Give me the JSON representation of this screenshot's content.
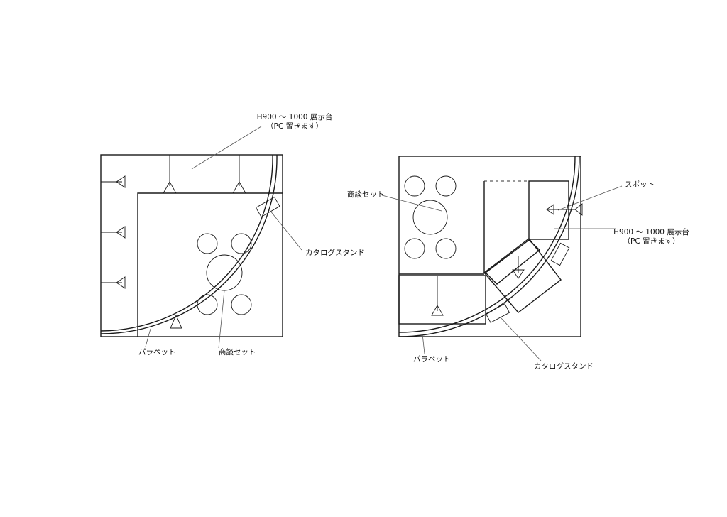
{
  "left_plan": {
    "display_stand_label": "H900 〜 1000 展示台",
    "display_stand_note": "（PC 置きます）",
    "catalog_stand_label": "カタログスタンド",
    "parapet_label": "パラペット",
    "meeting_set_label": "商談セット"
  },
  "right_plan": {
    "meeting_set_label": "商談セット",
    "spot_label": "スポット",
    "display_stand_label": "H900 〜 1000 展示台",
    "display_stand_note": "（PC 置きます）",
    "parapet_label": "パラペット",
    "catalog_stand_label": "カタログスタンド"
  }
}
